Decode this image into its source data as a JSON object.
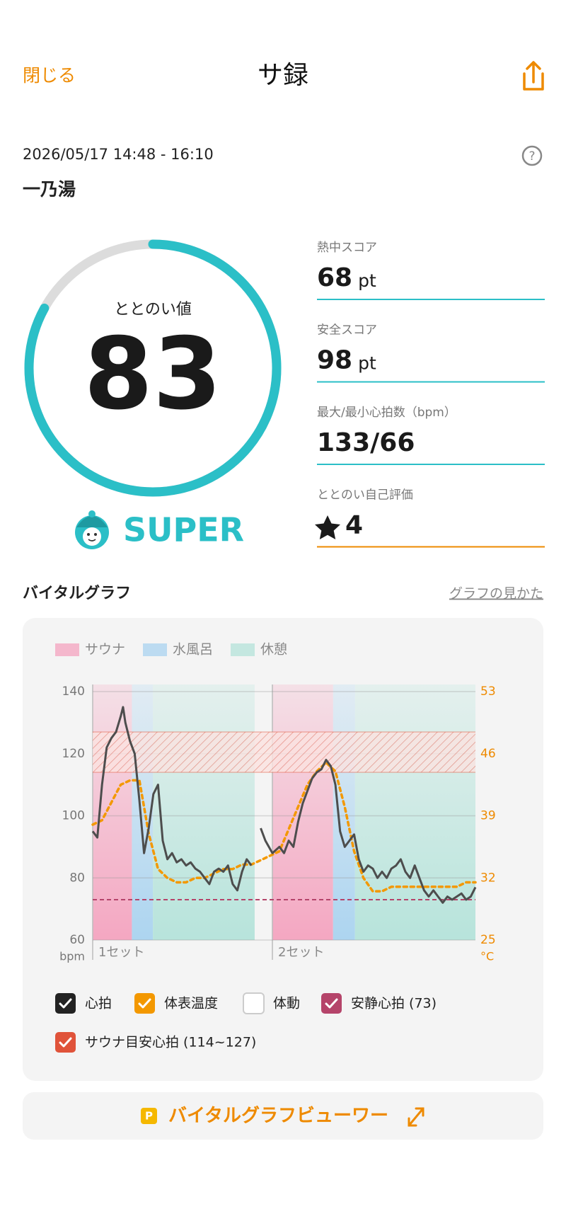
{
  "header": {
    "close": "閉じる",
    "title": "サ録"
  },
  "session": {
    "datetime": "2026/05/17 14:48 - 16:10",
    "facility": "一乃湯"
  },
  "gauge": {
    "label": "ととのい値",
    "value": 83,
    "range": [
      0,
      100
    ],
    "grade": "SUPER",
    "color": "#2bbfc7"
  },
  "stats": [
    {
      "label": "熱中スコア",
      "value": 68,
      "unit": "pt"
    },
    {
      "label": "安全スコア",
      "value": 98,
      "unit": "pt"
    },
    {
      "label": "最大/最小心拍数（bpm）",
      "value": "133/66"
    },
    {
      "label": "ととのい自己評価",
      "value": 4
    }
  ],
  "section": {
    "title": "バイタルグラフ",
    "help_link": "グラフの見かた"
  },
  "chart_data": {
    "type": "line",
    "phases": [
      {
        "name": "サウナ",
        "color": "#f4a3bf"
      },
      {
        "name": "水風呂",
        "color": "#a9d3f0"
      },
      {
        "name": "休憩",
        "color": "#b4e3da"
      }
    ],
    "segments": [
      {
        "phase": 0,
        "x": [
          0,
          8.4
        ]
      },
      {
        "phase": 1,
        "x": [
          8.4,
          12.9
        ]
      },
      {
        "phase": 2,
        "x": [
          12.9,
          34.7
        ]
      },
      {
        "phase": 0,
        "x": [
          38.5,
          51.5
        ]
      },
      {
        "phase": 1,
        "x": [
          51.5,
          56.2
        ]
      },
      {
        "phase": 2,
        "x": [
          56.2,
          82
        ]
      }
    ],
    "sets": [
      {
        "label": "1セット",
        "start": 0
      },
      {
        "label": "2セット",
        "start": 38.5
      }
    ],
    "xlim": [
      0,
      82
    ],
    "ylim": [
      60,
      140
    ],
    "yticks": [
      60,
      80,
      100,
      120,
      140
    ],
    "ylabel": "bpm",
    "y2lim": [
      25,
      53
    ],
    "y2ticks": [
      25,
      32,
      39,
      46,
      53
    ],
    "y2label": "°C",
    "grid": true,
    "series": [
      {
        "name": "心拍",
        "color": "#4d4d4d",
        "checked": true,
        "x": [
          0,
          1,
          2,
          3,
          4,
          5,
          6,
          6.5,
          7,
          8,
          9,
          10,
          11,
          12,
          13,
          14,
          15,
          16,
          17,
          18,
          19,
          20,
          21,
          22,
          23,
          24,
          25,
          26,
          27,
          28,
          29,
          30,
          31,
          32,
          33,
          34,
          35,
          36,
          37,
          38.5,
          40,
          41,
          42,
          43,
          44,
          45,
          46,
          47,
          48,
          49,
          50,
          51,
          52,
          53,
          54,
          55,
          56,
          57,
          58,
          59,
          60,
          61,
          62,
          63,
          64,
          65,
          66,
          67,
          68,
          69,
          70,
          71,
          72,
          73,
          74,
          75,
          76,
          77,
          78,
          79,
          80,
          81,
          82
        ],
        "values": [
          95,
          93,
          110,
          122,
          125,
          127,
          132,
          135,
          130,
          124,
          120,
          105,
          88,
          96,
          107,
          110,
          92,
          86,
          88,
          85,
          86,
          84,
          85,
          83,
          82,
          80,
          78,
          82,
          83,
          82,
          84,
          78,
          76,
          82,
          86,
          84,
          null,
          96,
          92,
          88,
          90,
          88,
          92,
          90,
          98,
          104,
          108,
          112,
          114,
          115,
          118,
          116,
          110,
          95,
          90,
          92,
          94,
          86,
          82,
          84,
          83,
          80,
          82,
          80,
          83,
          84,
          86,
          82,
          80,
          84,
          80,
          76,
          74,
          76,
          74,
          72,
          74,
          73,
          74,
          75,
          73,
          74,
          77
        ]
      },
      {
        "name": "体表温度",
        "color": "#f39800",
        "checked": true,
        "axis": "y2",
        "dashed": true,
        "x": [
          0,
          2,
          4,
          6,
          8,
          10,
          12,
          14,
          16,
          18,
          20,
          22,
          24,
          26,
          28,
          30,
          32,
          34,
          36,
          38,
          40,
          42,
          44,
          46,
          48,
          50,
          52,
          54,
          56,
          58,
          60,
          62,
          64,
          66,
          68,
          70,
          72,
          74,
          76,
          78,
          80,
          82
        ],
        "values": [
          38,
          38.5,
          40.5,
          42.5,
          43,
          43,
          37,
          33,
          32,
          31.5,
          31.5,
          32,
          32,
          32.5,
          33,
          33,
          33.5,
          33.5,
          34,
          34.5,
          35,
          37.5,
          40,
          42.5,
          44,
          45,
          44,
          40,
          35,
          32,
          30.5,
          30.5,
          31,
          31,
          31,
          31,
          31,
          31,
          31,
          31,
          31.5,
          31.5
        ]
      }
    ],
    "motion": {
      "name": "体動",
      "checked": false
    },
    "resting": {
      "name": "安静心拍 (73)",
      "value": 73,
      "color": "#b5446a",
      "checked": true
    },
    "target": {
      "name": "サウナ目安心拍 (114~127)",
      "range": [
        114,
        127
      ],
      "color": "#e0533a",
      "checked": true
    }
  },
  "viewer_button": {
    "badge": "P",
    "label": "バイタルグラフビューワー"
  }
}
